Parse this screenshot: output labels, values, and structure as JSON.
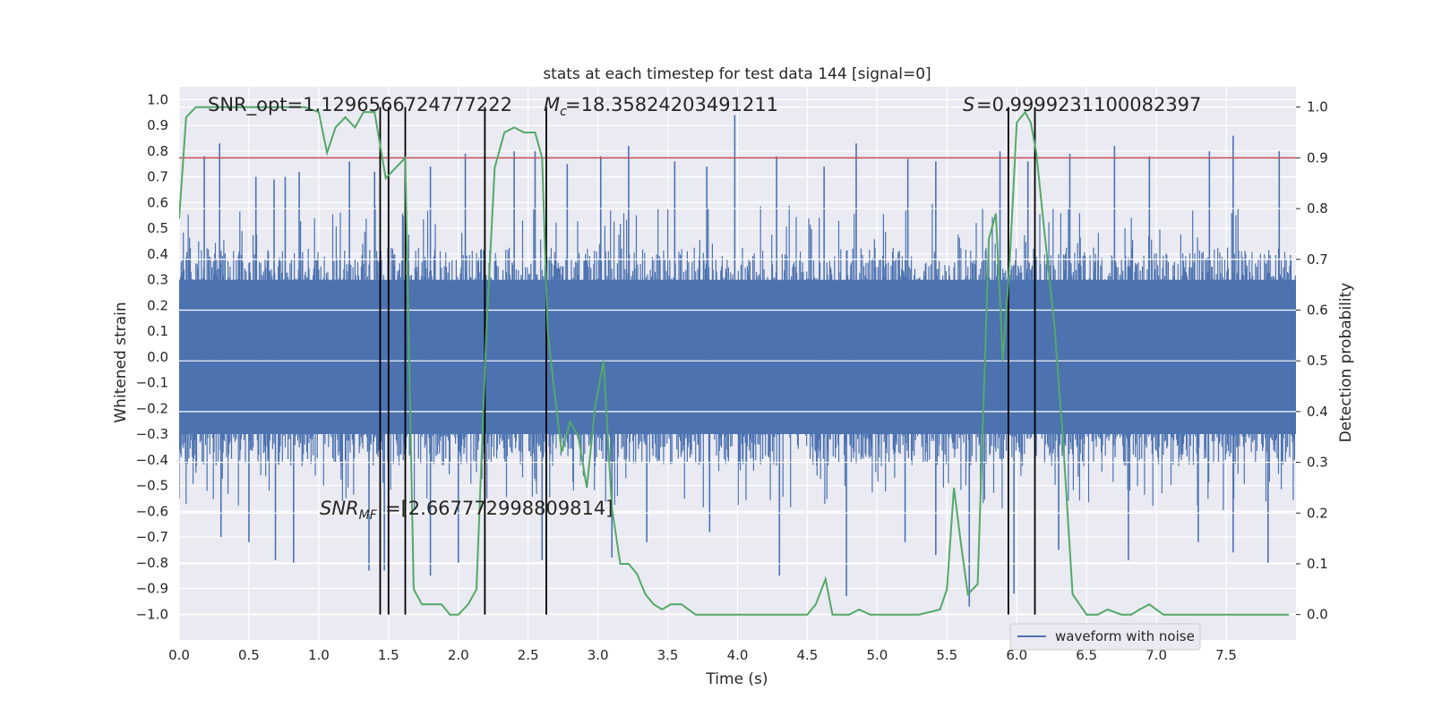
{
  "chart_data": {
    "type": "line",
    "title": "stats at each timestep for test data 144 [signal=0]",
    "xlabel": "Time (s)",
    "ylabel": "Whitened strain",
    "y2label": "Detection probability",
    "xlim": [
      0.0,
      8.0
    ],
    "ylim": [
      -1.1,
      1.05
    ],
    "y2lim": [
      -0.05,
      1.04
    ],
    "xticks": [
      "0.0",
      "0.5",
      "1.0",
      "1.5",
      "2.0",
      "2.5",
      "3.0",
      "3.5",
      "4.0",
      "4.5",
      "5.0",
      "5.5",
      "6.0",
      "6.5",
      "7.0",
      "7.5"
    ],
    "yticks": [
      "1.0",
      "0.9",
      "0.8",
      "0.7",
      "0.6",
      "0.5",
      "0.4",
      "0.3",
      "0.2",
      "0.1",
      "0.0",
      "-0.1",
      "-0.2",
      "-0.3",
      "-0.4",
      "-0.5",
      "-0.6",
      "-0.7",
      "-0.8",
      "-0.9",
      "-1.0"
    ],
    "y2ticks": [
      "1.0",
      "0.9",
      "0.8",
      "0.7",
      "0.6",
      "0.5",
      "0.4",
      "0.3",
      "0.2",
      "0.1",
      "0.0"
    ],
    "annotations": {
      "snr_opt": "SNR_opt=1.1296566724777222",
      "mc": "=18.35824203491211",
      "s": "=0.9999231100082397",
      "snr_mf": "=[2.667772998809814]"
    },
    "legend": {
      "label": "waveform with noise",
      "location": "lower-right"
    },
    "threshold": 0.9,
    "threshold_color": "#c44e52",
    "waveform_color": "#4c72b0",
    "probability_color": "#55a868",
    "vertical_lines_x": [
      1.44,
      1.5,
      1.62,
      2.19,
      2.63,
      5.94,
      6.13
    ],
    "waveform": {
      "name": "waveform with noise",
      "note": "dense whitened noise, bulk amplitude ~ +/-0.45 with spikes reaching ~ +/-0.95",
      "body_range": [
        -0.45,
        0.45
      ],
      "spikes": [
        [
          0.18,
          0.78
        ],
        [
          0.29,
          0.83
        ],
        [
          0.55,
          0.7
        ],
        [
          0.68,
          0.69
        ],
        [
          0.76,
          0.7
        ],
        [
          0.86,
          0.72
        ],
        [
          1.22,
          0.76
        ],
        [
          1.4,
          0.72
        ],
        [
          1.8,
          0.74
        ],
        [
          2.05,
          0.79
        ],
        [
          2.4,
          0.8
        ],
        [
          2.55,
          0.8
        ],
        [
          2.78,
          0.75
        ],
        [
          3.02,
          0.78
        ],
        [
          3.22,
          0.82
        ],
        [
          3.55,
          0.76
        ],
        [
          3.78,
          0.74
        ],
        [
          3.98,
          0.94
        ],
        [
          4.28,
          0.78
        ],
        [
          4.62,
          0.74
        ],
        [
          4.85,
          0.83
        ],
        [
          5.22,
          0.77
        ],
        [
          5.42,
          0.76
        ],
        [
          5.88,
          0.8
        ],
        [
          6.08,
          0.76
        ],
        [
          6.38,
          0.79
        ],
        [
          6.7,
          0.82
        ],
        [
          6.95,
          0.78
        ],
        [
          7.38,
          0.8
        ],
        [
          7.55,
          0.86
        ],
        [
          7.88,
          0.8
        ],
        [
          0.3,
          -0.7
        ],
        [
          0.5,
          -0.72
        ],
        [
          0.69,
          -0.79
        ],
        [
          0.82,
          -0.8
        ],
        [
          1.36,
          -0.83
        ],
        [
          1.47,
          -0.83
        ],
        [
          1.8,
          -0.85
        ],
        [
          2.0,
          -0.8
        ],
        [
          2.6,
          -0.79
        ],
        [
          3.1,
          -0.78
        ],
        [
          3.35,
          -0.72
        ],
        [
          3.8,
          -0.68
        ],
        [
          4.3,
          -0.85
        ],
        [
          4.78,
          -0.93
        ],
        [
          5.2,
          -0.72
        ],
        [
          5.42,
          -0.77
        ],
        [
          5.66,
          -0.97
        ],
        [
          5.98,
          -0.92
        ],
        [
          6.3,
          -0.75
        ],
        [
          6.8,
          -0.79
        ],
        [
          7.3,
          -0.72
        ],
        [
          7.55,
          -0.76
        ],
        [
          7.8,
          -0.8
        ]
      ]
    },
    "probability": {
      "name": "detection probability",
      "x": [
        0.0,
        0.05,
        0.12,
        0.2,
        0.3,
        0.5,
        0.7,
        0.9,
        1.0,
        1.06,
        1.12,
        1.19,
        1.26,
        1.32,
        1.4,
        1.48,
        1.55,
        1.62,
        1.68,
        1.74,
        1.81,
        1.88,
        1.94,
        2.0,
        2.07,
        2.13,
        2.2,
        2.26,
        2.33,
        2.4,
        2.47,
        2.55,
        2.6,
        2.64,
        2.68,
        2.74,
        2.8,
        2.86,
        2.92,
        2.98,
        3.04,
        3.1,
        3.16,
        3.22,
        3.28,
        3.34,
        3.4,
        3.46,
        3.52,
        3.6,
        3.7,
        3.8,
        3.9,
        4.0,
        4.1,
        4.2,
        4.3,
        4.38,
        4.5,
        4.56,
        4.63,
        4.68,
        4.74,
        4.8,
        4.87,
        4.95,
        5.05,
        5.12,
        5.2,
        5.3,
        5.45,
        5.5,
        5.55,
        5.6,
        5.65,
        5.72,
        5.8,
        5.85,
        5.9,
        5.95,
        6.0,
        6.06,
        6.1,
        6.14,
        6.2,
        6.27,
        6.33,
        6.4,
        6.45,
        6.5,
        6.58,
        6.65,
        6.75,
        6.82,
        6.88,
        6.95,
        7.05,
        7.2,
        7.4,
        7.6,
        7.8,
        7.95
      ],
      "y": [
        0.78,
        0.98,
        1.0,
        1.0,
        1.0,
        1.0,
        1.0,
        1.0,
        0.99,
        0.91,
        0.96,
        0.98,
        0.96,
        0.99,
        0.99,
        0.86,
        0.88,
        0.9,
        0.05,
        0.02,
        0.02,
        0.02,
        0.0,
        0.0,
        0.02,
        0.05,
        0.55,
        0.88,
        0.95,
        0.96,
        0.95,
        0.95,
        0.9,
        0.56,
        0.46,
        0.32,
        0.38,
        0.35,
        0.25,
        0.41,
        0.5,
        0.21,
        0.1,
        0.1,
        0.08,
        0.04,
        0.02,
        0.01,
        0.02,
        0.02,
        0.0,
        0.0,
        0.0,
        0.0,
        0.0,
        0.0,
        0.0,
        0.0,
        0.0,
        0.02,
        0.07,
        0.0,
        0.0,
        0.0,
        0.01,
        0.0,
        0.0,
        0.0,
        0.0,
        0.0,
        0.01,
        0.05,
        0.25,
        0.14,
        0.04,
        0.06,
        0.74,
        0.79,
        0.5,
        0.7,
        0.97,
        0.99,
        0.97,
        0.91,
        0.75,
        0.57,
        0.35,
        0.04,
        0.02,
        0.0,
        0.0,
        0.01,
        0.0,
        0.0,
        0.01,
        0.02,
        0.0,
        0.0,
        0.0,
        0.0,
        0.0,
        0.0
      ]
    }
  }
}
